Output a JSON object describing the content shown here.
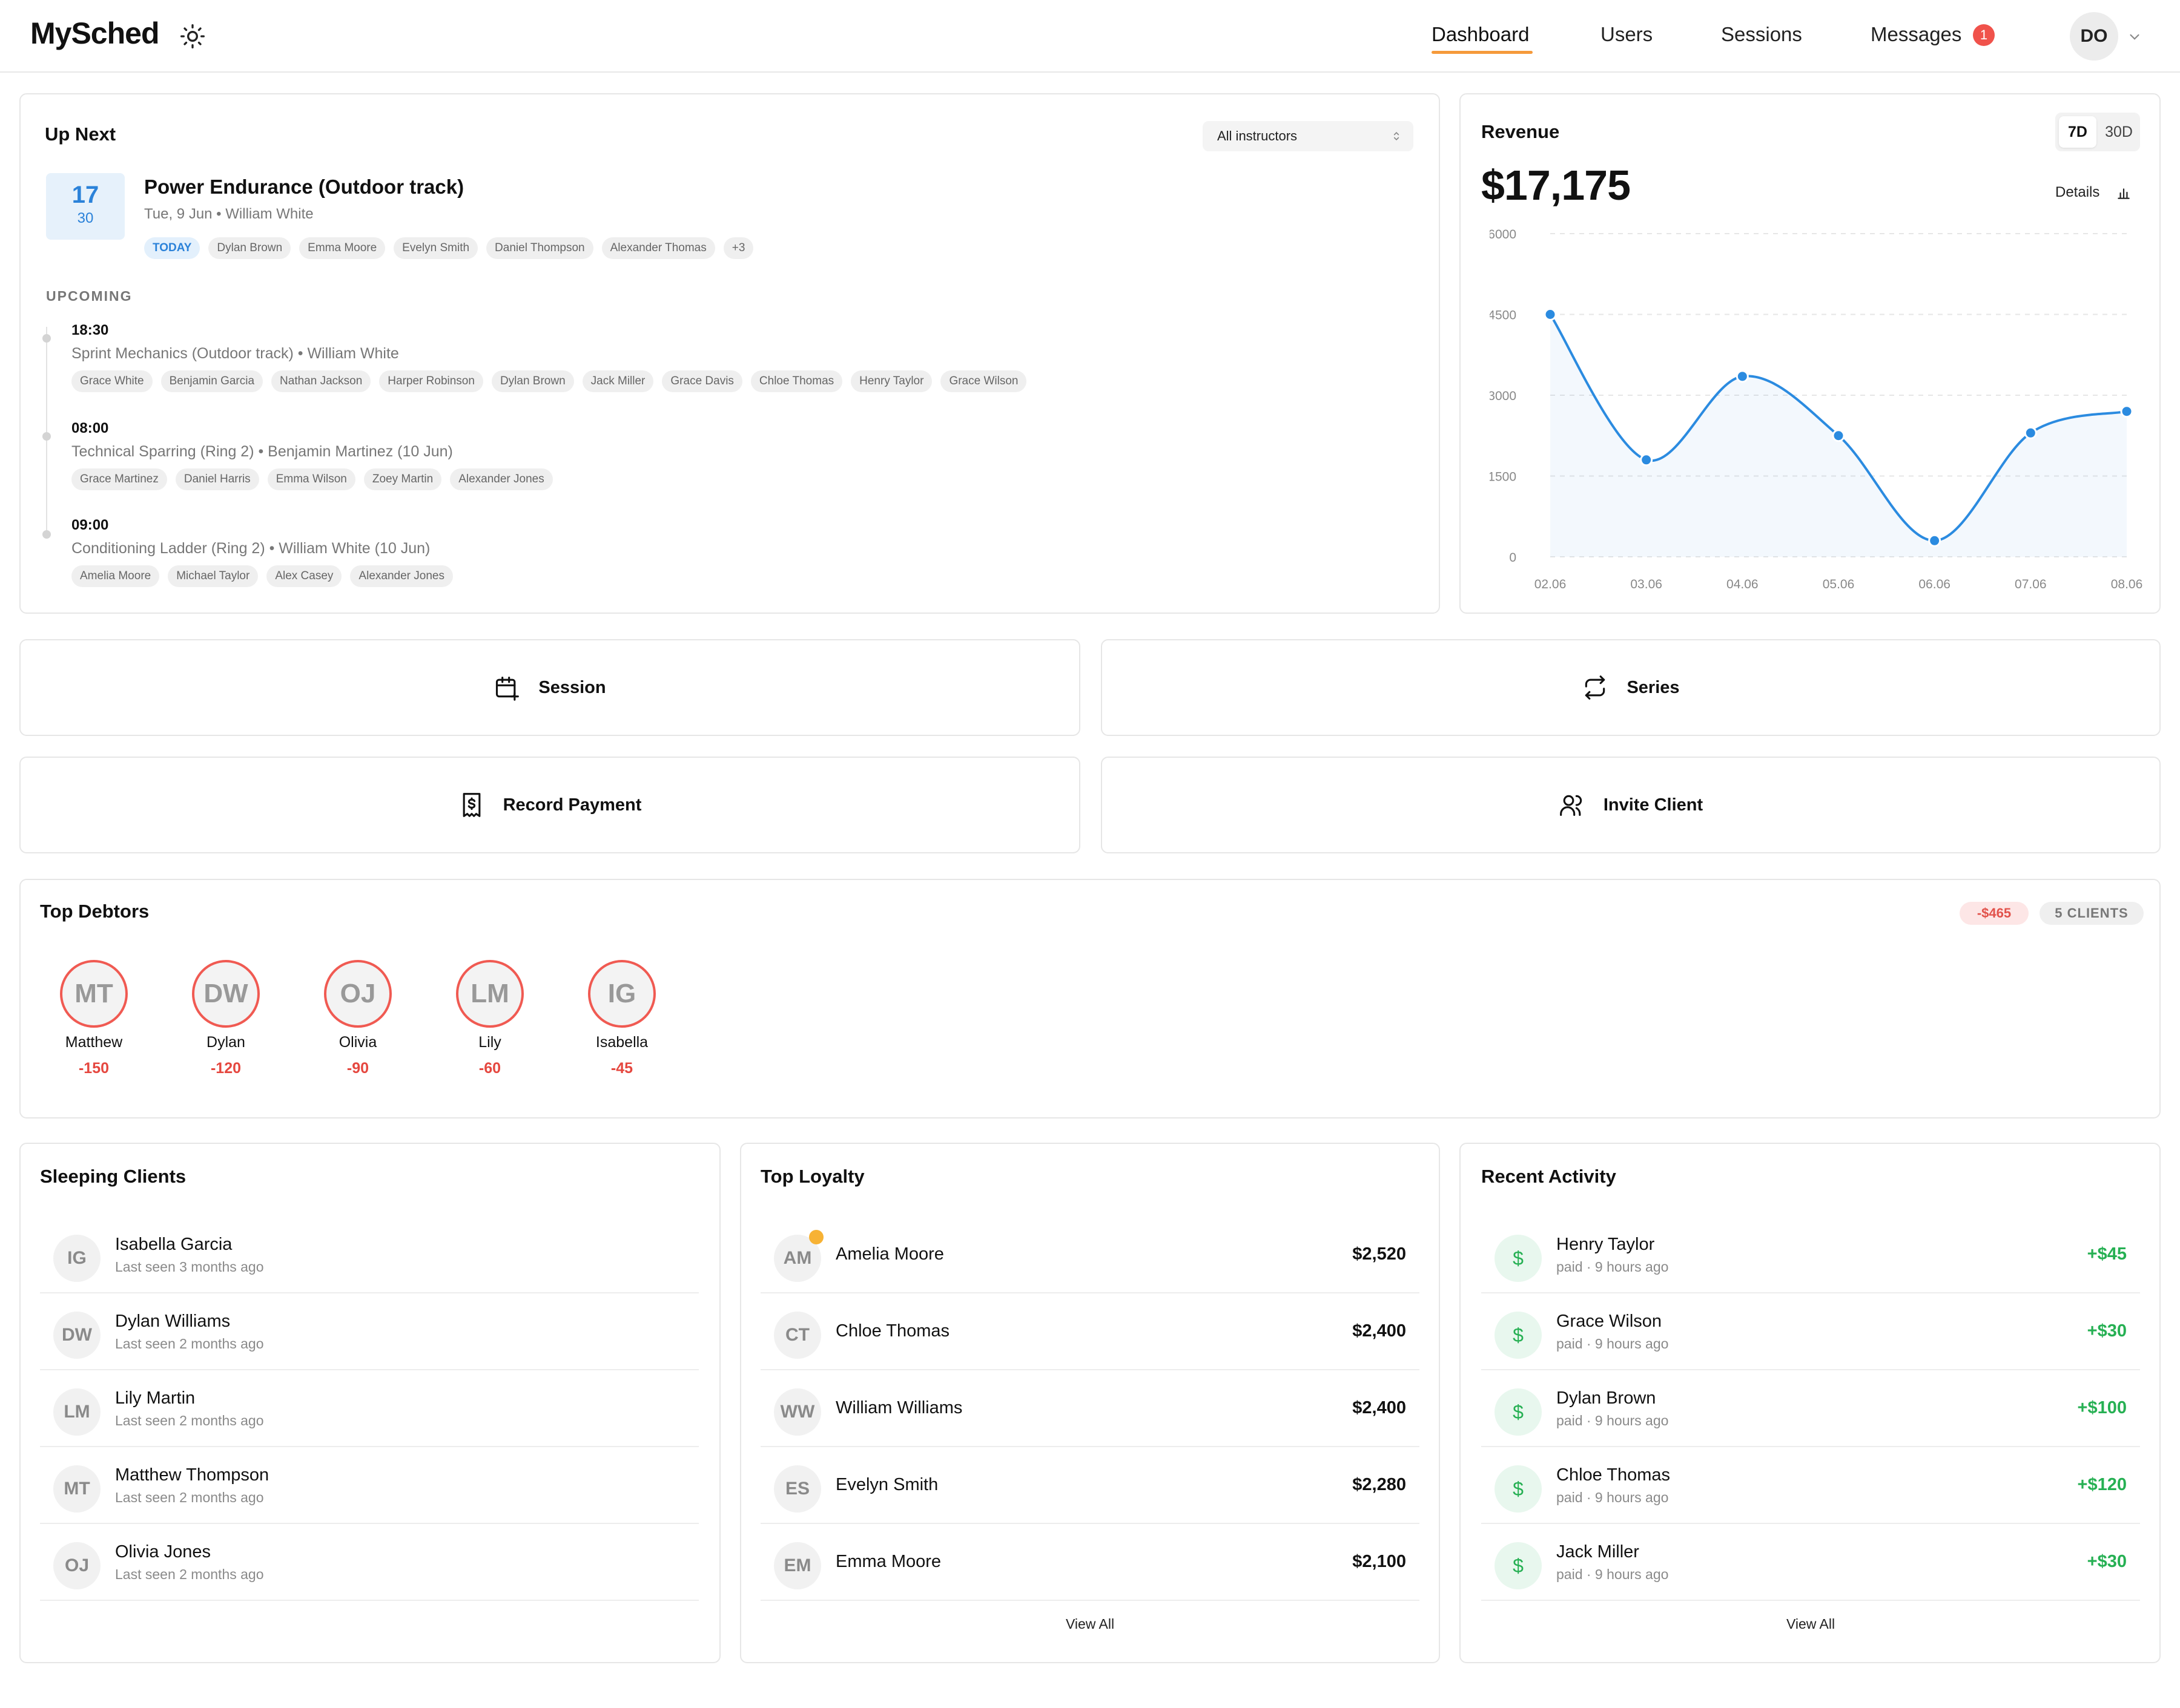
{
  "app": {
    "title": "MySched"
  },
  "nav": {
    "items": [
      {
        "label": "Dashboard",
        "active": true
      },
      {
        "label": "Users"
      },
      {
        "label": "Sessions"
      },
      {
        "label": "Messages",
        "badge": "1"
      }
    ],
    "user_initials": "DO"
  },
  "up_next": {
    "title": "Up Next",
    "instructor_filter": "All instructors",
    "next": {
      "date_day": "17",
      "date_sub": "30",
      "title": "Power Endurance (Outdoor track)",
      "subtitle": "Tue, 9 Jun • William White",
      "today_label": "TODAY",
      "attendees": [
        "Dylan Brown",
        "Emma Moore",
        "Evelyn Smith",
        "Daniel Thompson",
        "Alexander Thomas",
        "+3"
      ]
    },
    "upcoming_label": "UPCOMING",
    "upcoming": [
      {
        "time": "18:30",
        "desc": "Sprint Mechanics (Outdoor track) • William White",
        "attendees": [
          "Grace White",
          "Benjamin Garcia",
          "Nathan Jackson",
          "Harper Robinson",
          "Dylan Brown",
          "Jack Miller",
          "Grace Davis",
          "Chloe Thomas",
          "Henry Taylor",
          "Grace Wilson"
        ]
      },
      {
        "time": "08:00",
        "desc": "Technical Sparring (Ring 2) • Benjamin Martinez (10 Jun)",
        "attendees": [
          "Grace Martinez",
          "Daniel Harris",
          "Emma Wilson",
          "Zoey Martin",
          "Alexander Jones"
        ]
      },
      {
        "time": "09:00",
        "desc": "Conditioning Ladder (Ring 2) • William White (10 Jun)",
        "attendees": [
          "Amelia Moore",
          "Michael Taylor",
          "Alex Casey",
          "Alexander Jones"
        ]
      }
    ]
  },
  "revenue": {
    "title": "Revenue",
    "range_options": [
      "7D",
      "30D"
    ],
    "selected_range": "7D",
    "total": "$17,175",
    "details_label": "Details",
    "accent": "#2b8be0"
  },
  "chart_data": {
    "type": "line",
    "x": [
      "02.06",
      "03.06",
      "04.06",
      "05.06",
      "06.06",
      "07.06",
      "08.06"
    ],
    "values": [
      4500,
      1800,
      3350,
      2250,
      300,
      2300,
      2700
    ],
    "ylim": [
      0,
      6000
    ],
    "yticks": [
      "6000",
      "4500",
      "3000",
      "1500",
      "0"
    ],
    "grid": true
  },
  "actions": {
    "session": "Session",
    "series": "Series",
    "record_payment": "Record Payment",
    "invite_client": "Invite Client"
  },
  "debtors": {
    "title": "Top Debtors",
    "total": "-$465",
    "count": "5 CLIENTS",
    "items": [
      {
        "initials": "MT",
        "name": "Matthew",
        "amount": "-150"
      },
      {
        "initials": "DW",
        "name": "Dylan",
        "amount": "-120"
      },
      {
        "initials": "OJ",
        "name": "Olivia",
        "amount": "-90"
      },
      {
        "initials": "LM",
        "name": "Lily",
        "amount": "-60"
      },
      {
        "initials": "IG",
        "name": "Isabella",
        "amount": "-45"
      }
    ]
  },
  "sleeping": {
    "title": "Sleeping Clients",
    "items": [
      {
        "initials": "IG",
        "name": "Isabella Garcia",
        "sub": "Last seen 3 months ago"
      },
      {
        "initials": "DW",
        "name": "Dylan Williams",
        "sub": "Last seen 2 months ago"
      },
      {
        "initials": "LM",
        "name": "Lily Martin",
        "sub": "Last seen 2 months ago"
      },
      {
        "initials": "MT",
        "name": "Matthew Thompson",
        "sub": "Last seen 2 months ago"
      },
      {
        "initials": "OJ",
        "name": "Olivia Jones",
        "sub": "Last seen 2 months ago"
      }
    ]
  },
  "loyalty": {
    "title": "Top Loyalty",
    "view_all": "View All",
    "items": [
      {
        "initials": "AM",
        "name": "Amelia Moore",
        "amount": "$2,520"
      },
      {
        "initials": "CT",
        "name": "Chloe Thomas",
        "amount": "$2,400"
      },
      {
        "initials": "WW",
        "name": "William Williams",
        "amount": "$2,400"
      },
      {
        "initials": "ES",
        "name": "Evelyn Smith",
        "amount": "$2,280"
      },
      {
        "initials": "EM",
        "name": "Emma Moore",
        "amount": "$2,100"
      }
    ]
  },
  "activity": {
    "title": "Recent Activity",
    "view_all": "View All",
    "icon": "$",
    "items": [
      {
        "name": "Henry Taylor",
        "sub": "paid · 9 hours ago",
        "amount": "+$45"
      },
      {
        "name": "Grace Wilson",
        "sub": "paid · 9 hours ago",
        "amount": "+$30"
      },
      {
        "name": "Dylan Brown",
        "sub": "paid · 9 hours ago",
        "amount": "+$100"
      },
      {
        "name": "Chloe Thomas",
        "sub": "paid · 9 hours ago",
        "amount": "+$120"
      },
      {
        "name": "Jack Miller",
        "sub": "paid · 9 hours ago",
        "amount": "+$30"
      }
    ]
  }
}
